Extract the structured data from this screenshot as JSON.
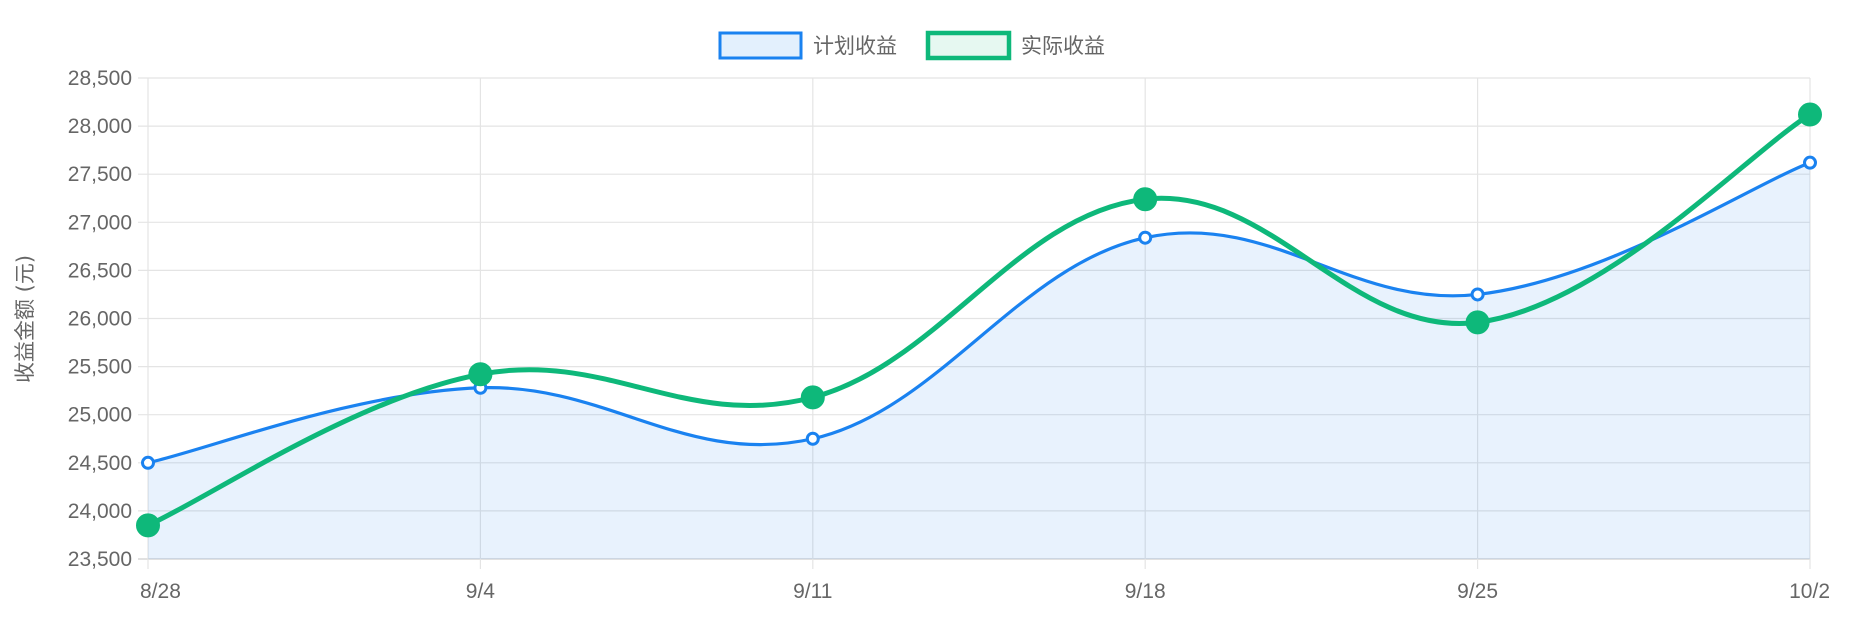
{
  "chart_data": {
    "type": "line",
    "categories": [
      "8/28",
      "9/4",
      "9/11",
      "9/18",
      "9/25",
      "10/2"
    ],
    "ylabel": "收益金额 (元)",
    "ylim": [
      23500,
      28500
    ],
    "yticks": [
      "23,500",
      "24,000",
      "24,500",
      "25,000",
      "25,500",
      "26,000",
      "26,500",
      "27,000",
      "27,500",
      "28,000",
      "28,500"
    ],
    "grid": true,
    "legend_position": "top",
    "series": [
      {
        "name": "计划收益",
        "values": [
          24500,
          25280,
          24750,
          26840,
          26250,
          27620
        ],
        "color": "#1a82f0",
        "fill": "rgba(26,130,240,0.10)",
        "filled": true,
        "point_style": "hollow-circle"
      },
      {
        "name": "实际收益",
        "values": [
          23850,
          25420,
          25180,
          27240,
          25960,
          28120
        ],
        "color": "#0eb87a",
        "fill": "rgba(14,184,122,0.10)",
        "filled": false,
        "point_style": "filled-circle"
      }
    ]
  }
}
